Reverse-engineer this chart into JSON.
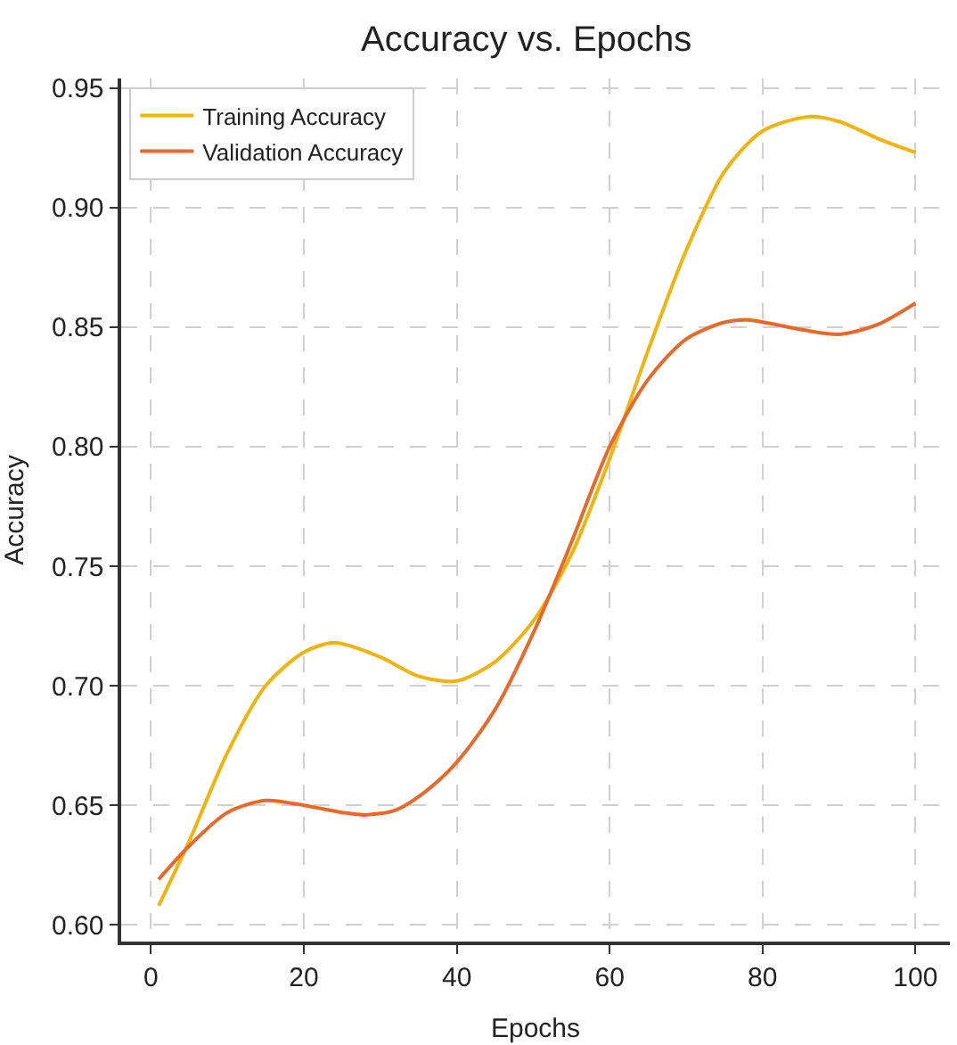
{
  "chart_data": {
    "type": "line",
    "title": "Accuracy vs. Epochs",
    "xlabel": "Epochs",
    "ylabel": "Accuracy",
    "x": [
      1,
      5,
      10,
      15,
      20,
      24,
      30,
      35,
      40,
      45,
      50,
      55,
      60,
      65,
      70,
      75,
      80,
      86,
      90,
      95,
      100
    ],
    "series": [
      {
        "name": "Training Accuracy",
        "color": "#f2b40c",
        "values": [
          0.608,
          0.635,
          0.672,
          0.7,
          0.714,
          0.718,
          0.712,
          0.704,
          0.702,
          0.71,
          0.727,
          0.755,
          0.795,
          0.84,
          0.882,
          0.915,
          0.932,
          0.938,
          0.936,
          0.929,
          0.923
        ]
      },
      {
        "name": "Validation Accuracy",
        "color": "#e8692a",
        "x": [
          1,
          5,
          10,
          15,
          20,
          25,
          28,
          32,
          36,
          40,
          45,
          50,
          55,
          60,
          65,
          70,
          75,
          78,
          85,
          90,
          95,
          100
        ],
        "values": [
          0.619,
          0.633,
          0.647,
          0.652,
          0.65,
          0.647,
          0.646,
          0.648,
          0.656,
          0.668,
          0.69,
          0.722,
          0.76,
          0.8,
          0.828,
          0.845,
          0.852,
          0.853,
          0.849,
          0.847,
          0.851,
          0.86
        ]
      }
    ],
    "xlim": [
      -3.9,
      104.5
    ],
    "xticks": [
      0,
      20,
      40,
      60,
      80,
      100
    ],
    "ylim": [
      0.593,
      0.954
    ],
    "yticks": [
      {
        "value": 0.6,
        "label": "0.60"
      },
      {
        "value": 0.65,
        "label": "0.65"
      },
      {
        "value": 0.7,
        "label": "0.70"
      },
      {
        "value": 0.75,
        "label": "0.75"
      },
      {
        "value": 0.8,
        "label": "0.80"
      },
      {
        "value": 0.85,
        "label": "0.85"
      },
      {
        "value": 0.9,
        "label": "0.90"
      },
      {
        "value": 0.95,
        "label": "0.95"
      }
    ],
    "grid": true,
    "legend": "top left",
    "marker": "none",
    "line_style": "solid"
  }
}
